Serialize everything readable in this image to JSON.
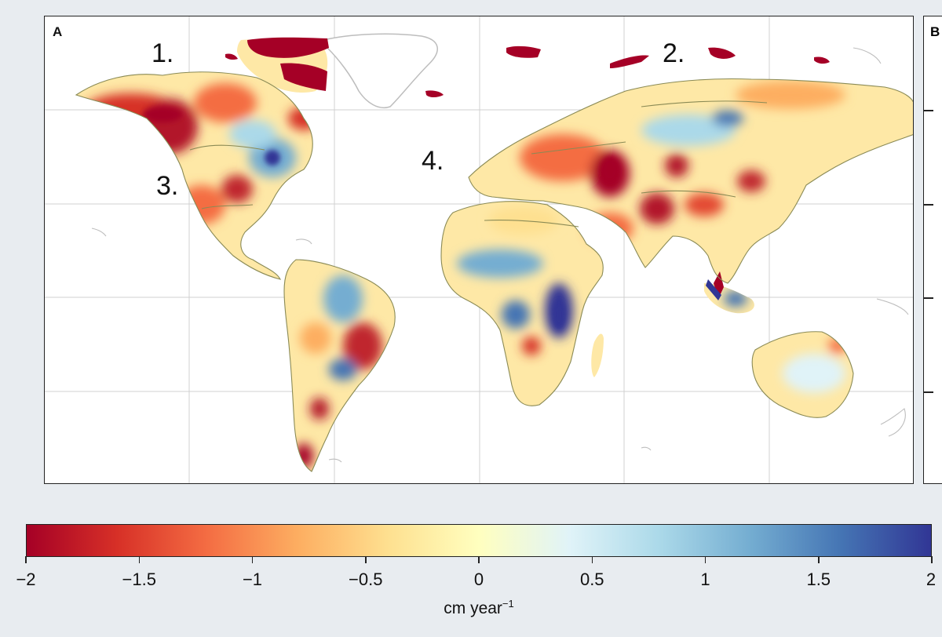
{
  "panel_a": {
    "letter": "A",
    "region_labels": [
      "1.",
      "2.",
      "3.",
      "4."
    ]
  },
  "panel_b": {
    "letter": "B"
  },
  "colorbar": {
    "ticks": [
      "−2",
      "−1.5",
      "−1",
      "−0.5",
      "0",
      "0.5",
      "1",
      "1.5",
      "2"
    ],
    "tick_values": [
      -2,
      -1.5,
      -1,
      -0.5,
      0,
      0.5,
      1,
      1.5,
      2
    ],
    "range": [
      -2,
      2
    ],
    "unit_base": "cm year",
    "unit_exp": "−1",
    "colors": [
      "#a50026",
      "#d73027",
      "#f46d43",
      "#fdae61",
      "#fee090",
      "#ffffbf",
      "#e0f3f8",
      "#abd9e9",
      "#74add1",
      "#4575b4",
      "#313695"
    ]
  },
  "colors": {
    "land_outline": "#8a8a55",
    "greenland_outline": "#bdbdbd",
    "grid": "#d0d0d0",
    "ocean": "#ffffff"
  }
}
